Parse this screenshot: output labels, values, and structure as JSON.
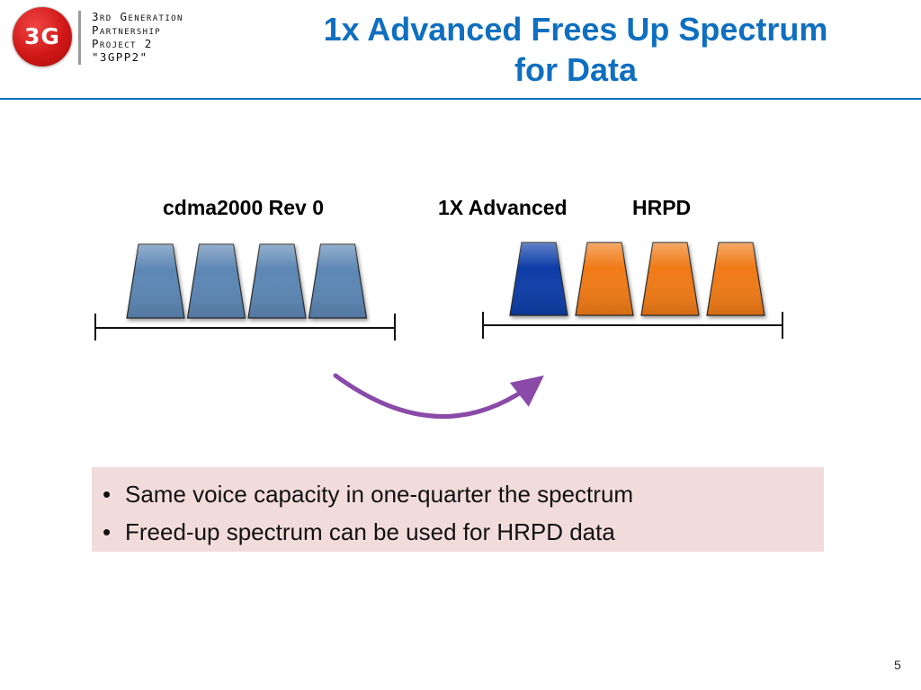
{
  "logo": {
    "mark": "3G",
    "lines": [
      "3rd Generation",
      "Partnership",
      "Project 2",
      "\"3GPP2\""
    ]
  },
  "title": {
    "line1": "1x Advanced Frees Up Spectrum",
    "line2": "for Data"
  },
  "diagram": {
    "left_group": {
      "label": "cdma2000 Rev 0",
      "carriers": [
        {
          "kind": "cdma2000",
          "color": "#5b86b4"
        },
        {
          "kind": "cdma2000",
          "color": "#5b86b4"
        },
        {
          "kind": "cdma2000",
          "color": "#5b86b4"
        },
        {
          "kind": "cdma2000",
          "color": "#5b86b4"
        }
      ]
    },
    "right_group": {
      "label_1x": "1X Advanced",
      "label_hrpd": "HRPD",
      "carriers": [
        {
          "kind": "1x-advanced",
          "color": "#0b3ea8"
        },
        {
          "kind": "hrpd",
          "color": "#f07a14"
        },
        {
          "kind": "hrpd",
          "color": "#f07a14"
        },
        {
          "kind": "hrpd",
          "color": "#f07a14"
        }
      ]
    },
    "arrow_color": "#8a4aa8"
  },
  "bullets": [
    "Same voice capacity in one-quarter the spectrum",
    "Freed-up spectrum can be used for HRPD data"
  ],
  "bullet_symbol": "•",
  "colors": {
    "title": "#0f6fc0",
    "bullet_box": "#f2dcdb"
  },
  "page_number": "5"
}
